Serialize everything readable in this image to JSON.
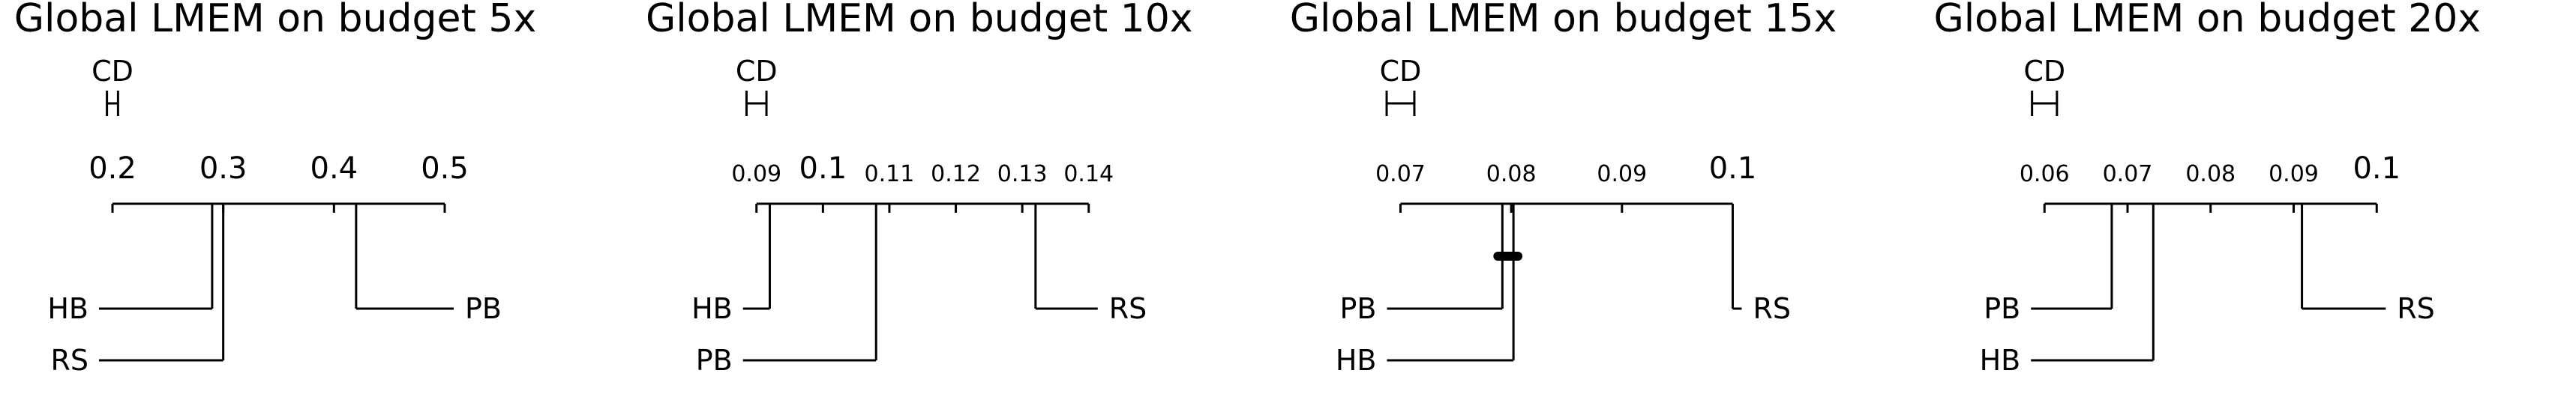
{
  "chart_data": [
    {
      "type": "critical-difference",
      "title": "Global LMEM on budget 5x",
      "cd_label": "CD",
      "cd_value": 0.01,
      "axis": {
        "min": 0.2,
        "max": 0.5,
        "ticks": [
          0.2,
          0.3,
          0.4,
          0.5
        ],
        "tick_labels": [
          "0.2",
          "0.3",
          "0.4",
          "0.5"
        ],
        "major_ticks": [
          0.2,
          0.3,
          0.4,
          0.5
        ]
      },
      "left_methods": [
        {
          "name": "HB",
          "value": 0.29
        },
        {
          "name": "RS",
          "value": 0.3
        }
      ],
      "right_methods": [
        {
          "name": "PB",
          "value": 0.42
        }
      ],
      "cliques": []
    },
    {
      "type": "critical-difference",
      "title": "Global LMEM on budget 10x",
      "cd_label": "CD",
      "cd_value": 0.003,
      "axis": {
        "min": 0.09,
        "max": 0.14,
        "ticks": [
          0.09,
          0.1,
          0.11,
          0.12,
          0.13,
          0.14
        ],
        "tick_labels": [
          "0.09",
          "0.1",
          "0.11",
          "0.12",
          "0.13",
          "0.14"
        ],
        "major_ticks": [
          0.1
        ]
      },
      "left_methods": [
        {
          "name": "HB",
          "value": 0.092
        },
        {
          "name": "PB",
          "value": 0.108
        }
      ],
      "right_methods": [
        {
          "name": "RS",
          "value": 0.132
        }
      ],
      "cliques": []
    },
    {
      "type": "critical-difference",
      "title": "Global LMEM on budget 15x",
      "cd_label": "CD",
      "cd_value": 0.0025,
      "axis": {
        "min": 0.07,
        "max": 0.1,
        "ticks": [
          0.07,
          0.08,
          0.09,
          0.1
        ],
        "tick_labels": [
          "0.07",
          "0.08",
          "0.09",
          "0.1"
        ],
        "major_ticks": [
          0.1
        ]
      },
      "left_methods": [
        {
          "name": "PB",
          "value": 0.0792
        },
        {
          "name": "HB",
          "value": 0.0802
        }
      ],
      "right_methods": [
        {
          "name": "RS",
          "value": 0.1
        }
      ],
      "cliques": [
        {
          "from": 0.0792,
          "to": 0.0802
        }
      ]
    },
    {
      "type": "critical-difference",
      "title": "Global LMEM on budget 20x",
      "cd_label": "CD",
      "cd_value": 0.003,
      "axis": {
        "min": 0.06,
        "max": 0.1,
        "ticks": [
          0.06,
          0.07,
          0.08,
          0.09,
          0.1
        ],
        "tick_labels": [
          "0.06",
          "0.07",
          "0.08",
          "0.09",
          "0.1"
        ],
        "major_ticks": [
          0.1
        ]
      },
      "left_methods": [
        {
          "name": "PB",
          "value": 0.0681
        },
        {
          "name": "HB",
          "value": 0.0731
        }
      ],
      "right_methods": [
        {
          "name": "RS",
          "value": 0.091
        }
      ],
      "cliques": []
    }
  ]
}
